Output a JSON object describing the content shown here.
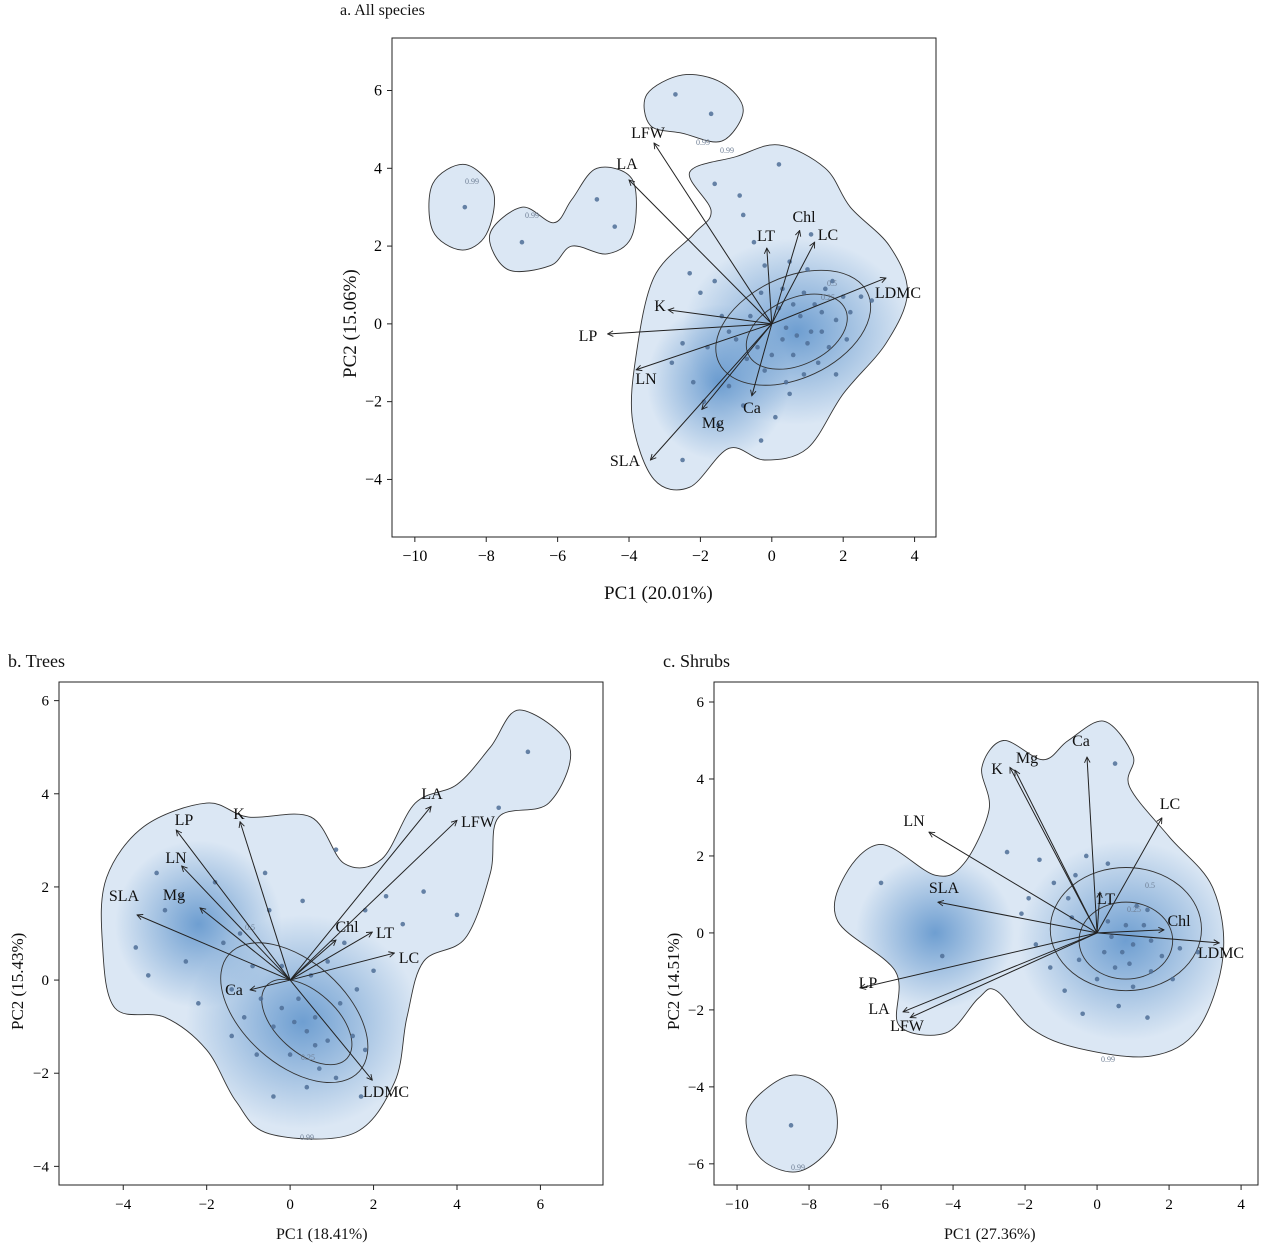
{
  "chart_data": [
    {
      "type": "scatter",
      "title": "a. All species",
      "xlabel": "PC1 (20.01%)",
      "ylabel": "PC2 (15.06%)",
      "xlim": [
        -10.64,
        4.6
      ],
      "ylim": [
        -5.48,
        7.35
      ],
      "xticks": [
        -10,
        -8,
        -6,
        -4,
        -2,
        0,
        2,
        4
      ],
      "yticks": [
        -4,
        -2,
        0,
        2,
        4,
        6
      ],
      "grid": false,
      "contour_levels": [
        "0.99",
        "0.5",
        "0.25"
      ],
      "colors": {
        "density": "#4a86c5",
        "points": "#4f6f96",
        "lines": "#222222"
      },
      "loadings": [
        {
          "name": "LFW",
          "x": -3.3,
          "y": 4.65
        },
        {
          "name": "LA",
          "x": -4.0,
          "y": 3.7
        },
        {
          "name": "LT",
          "x": -0.14,
          "y": 1.95
        },
        {
          "name": "Chl",
          "x": 0.78,
          "y": 2.4
        },
        {
          "name": "LC",
          "x": 1.2,
          "y": 2.1
        },
        {
          "name": "LDMC",
          "x": 3.2,
          "y": 1.18
        },
        {
          "name": "K",
          "x": -2.9,
          "y": 0.36
        },
        {
          "name": "LP",
          "x": -4.6,
          "y": -0.26
        },
        {
          "name": "LN",
          "x": -3.8,
          "y": -1.18
        },
        {
          "name": "Mg",
          "x": -1.96,
          "y": -2.2
        },
        {
          "name": "Ca",
          "x": -0.56,
          "y": -1.85
        },
        {
          "name": "SLA",
          "x": -3.4,
          "y": -3.5
        }
      ],
      "points": [
        [
          -8.6,
          3.0
        ],
        [
          -7.0,
          2.1
        ],
        [
          -4.9,
          3.2
        ],
        [
          -4.4,
          2.5
        ],
        [
          -2.7,
          5.9
        ],
        [
          -1.7,
          5.4
        ],
        [
          -1.6,
          3.6
        ],
        [
          -0.8,
          2.8
        ],
        [
          0.2,
          4.1
        ],
        [
          1.1,
          2.3
        ],
        [
          -2.3,
          1.3
        ],
        [
          -2.0,
          0.8
        ],
        [
          -1.6,
          1.1
        ],
        [
          -2.5,
          -0.5
        ],
        [
          -2.8,
          -1.0
        ],
        [
          -1.8,
          -0.6
        ],
        [
          -2.2,
          -1.5
        ],
        [
          -1.9,
          -2.0
        ],
        [
          -2.5,
          -3.5
        ],
        [
          -1.5,
          -2.6
        ],
        [
          -0.8,
          -2.1
        ],
        [
          -1.2,
          -1.6
        ],
        [
          -0.3,
          -3.0
        ],
        [
          0.5,
          -1.8
        ],
        [
          -1.0,
          -0.4
        ],
        [
          -0.6,
          0.2
        ],
        [
          -0.3,
          0.8
        ],
        [
          0.3,
          0.9
        ],
        [
          0.5,
          1.6
        ],
        [
          1.0,
          1.4
        ],
        [
          1.5,
          0.9
        ],
        [
          2.0,
          0.7
        ],
        [
          2.2,
          0.3
        ],
        [
          1.8,
          0.1
        ],
        [
          1.4,
          -0.2
        ],
        [
          1.0,
          -0.5
        ],
        [
          0.7,
          -0.3
        ],
        [
          0.4,
          -0.1
        ],
        [
          0.2,
          0.4
        ],
        [
          0.8,
          0.2
        ],
        [
          1.2,
          0.5
        ],
        [
          1.6,
          -0.6
        ],
        [
          1.3,
          -1.0
        ],
        [
          0.9,
          -1.3
        ],
        [
          0.4,
          -1.5
        ],
        [
          0.0,
          -0.8
        ],
        [
          -0.4,
          -0.6
        ],
        [
          -0.2,
          -1.2
        ],
        [
          0.6,
          -0.8
        ],
        [
          1.1,
          -0.2
        ],
        [
          0.3,
          -0.4
        ],
        [
          -0.7,
          -0.9
        ],
        [
          1.8,
          -1.3
        ],
        [
          2.5,
          0.7
        ],
        [
          2.8,
          0.6
        ],
        [
          -0.2,
          1.5
        ],
        [
          0.9,
          0.8
        ],
        [
          1.4,
          0.3
        ],
        [
          0.6,
          0.5
        ],
        [
          -1.4,
          0.2
        ],
        [
          -1.2,
          -0.2
        ],
        [
          0.1,
          -2.4
        ],
        [
          1.7,
          1.1
        ],
        [
          2.1,
          -0.4
        ],
        [
          -0.5,
          2.1
        ],
        [
          -0.9,
          3.3
        ]
      ]
    },
    {
      "type": "scatter",
      "title": "b. Trees",
      "xlabel": "PC1 (18.41%)",
      "ylabel": "PC2 (15.43%)",
      "xlim": [
        -5.54,
        7.5
      ],
      "ylim": [
        -4.4,
        6.4
      ],
      "xticks": [
        -4,
        -2,
        0,
        2,
        4,
        6
      ],
      "yticks": [
        -4,
        -2,
        0,
        2,
        4,
        6
      ],
      "grid": false,
      "contour_levels": [
        "0.99",
        "0.5",
        "0.25"
      ],
      "colors": {
        "density": "#4a86c5",
        "points": "#4f6f96",
        "lines": "#222222"
      },
      "loadings": [
        {
          "name": "LP",
          "x": -2.73,
          "y": 3.22
        },
        {
          "name": "K",
          "x": -1.2,
          "y": 3.4
        },
        {
          "name": "LN",
          "x": -2.6,
          "y": 2.45
        },
        {
          "name": "SLA",
          "x": -3.67,
          "y": 1.4
        },
        {
          "name": "Mg",
          "x": -2.16,
          "y": 1.55
        },
        {
          "name": "Ca",
          "x": -0.96,
          "y": -0.21
        },
        {
          "name": "Chl",
          "x": 1.1,
          "y": 0.86
        },
        {
          "name": "LT",
          "x": 1.97,
          "y": 1.03
        },
        {
          "name": "LC",
          "x": 2.5,
          "y": 0.58
        },
        {
          "name": "LA",
          "x": 3.38,
          "y": 3.73
        },
        {
          "name": "LFW",
          "x": 4.0,
          "y": 3.43
        },
        {
          "name": "LDMC",
          "x": 1.97,
          "y": -2.15
        }
      ],
      "points": [
        [
          5.7,
          4.9
        ],
        [
          5.0,
          3.7
        ],
        [
          4.0,
          1.4
        ],
        [
          3.2,
          1.9
        ],
        [
          2.7,
          1.2
        ],
        [
          1.8,
          1.5
        ],
        [
          1.1,
          2.8
        ],
        [
          0.3,
          1.7
        ],
        [
          -0.5,
          1.5
        ],
        [
          -1.2,
          1.0
        ],
        [
          -1.8,
          2.1
        ],
        [
          -3.0,
          1.5
        ],
        [
          -3.2,
          2.3
        ],
        [
          -3.7,
          0.7
        ],
        [
          -3.4,
          0.1
        ],
        [
          -2.5,
          0.4
        ],
        [
          -2.2,
          -0.5
        ],
        [
          -1.4,
          -0.2
        ],
        [
          -1.4,
          -1.2
        ],
        [
          -0.8,
          -1.6
        ],
        [
          -0.4,
          -2.5
        ],
        [
          -0.2,
          -0.6
        ],
        [
          0.1,
          -0.9
        ],
        [
          0.4,
          -1.1
        ],
        [
          0.6,
          -0.8
        ],
        [
          0.9,
          -1.3
        ],
        [
          1.2,
          -0.5
        ],
        [
          1.5,
          -1.2
        ],
        [
          1.8,
          -1.5
        ],
        [
          0.7,
          -1.9
        ],
        [
          0.4,
          -2.3
        ],
        [
          0.0,
          -1.6
        ],
        [
          -0.4,
          -1.0
        ],
        [
          -0.7,
          -0.4
        ],
        [
          -0.9,
          0.3
        ],
        [
          -0.2,
          0.3
        ],
        [
          0.5,
          0.1
        ],
        [
          0.9,
          0.4
        ],
        [
          1.3,
          0.8
        ],
        [
          2.0,
          0.2
        ],
        [
          0.2,
          -0.4
        ],
        [
          0.6,
          -1.4
        ],
        [
          1.1,
          -2.1
        ],
        [
          1.7,
          -2.5
        ],
        [
          -1.6,
          0.8
        ],
        [
          -2.6,
          1.8
        ],
        [
          -0.6,
          2.3
        ],
        [
          2.3,
          1.8
        ],
        [
          1.6,
          -0.2
        ],
        [
          -1.1,
          -0.8
        ]
      ]
    },
    {
      "type": "scatter",
      "title": "c. Shrubs",
      "xlabel": "PC1 (27.36%)",
      "ylabel": "PC2 (14.51%)",
      "xlim": [
        -10.64,
        4.47
      ],
      "ylim": [
        -6.55,
        6.52
      ],
      "xticks": [
        -10,
        -8,
        -6,
        -4,
        -2,
        0,
        2,
        4
      ],
      "yticks": [
        -6,
        -4,
        -2,
        0,
        2,
        4,
        6
      ],
      "grid": false,
      "contour_levels": [
        "0.99",
        "0.5",
        "0.25"
      ],
      "colors": {
        "density": "#4a86c5",
        "points": "#4f6f96",
        "lines": "#222222"
      },
      "loadings": [
        {
          "name": "Ca",
          "x": -0.28,
          "y": 4.57
        },
        {
          "name": "Mg",
          "x": -2.28,
          "y": 4.23
        },
        {
          "name": "K",
          "x": -2.42,
          "y": 4.3
        },
        {
          "name": "LC",
          "x": 1.8,
          "y": 2.99
        },
        {
          "name": "LN",
          "x": -4.67,
          "y": 2.62
        },
        {
          "name": "SLA",
          "x": -4.42,
          "y": 0.8
        },
        {
          "name": "LT",
          "x": 0.08,
          "y": 1.06
        },
        {
          "name": "Chl",
          "x": 1.86,
          "y": 0.08
        },
        {
          "name": "LDMC",
          "x": 3.39,
          "y": -0.26
        },
        {
          "name": "LP",
          "x": -6.58,
          "y": -1.43
        },
        {
          "name": "LA",
          "x": -5.39,
          "y": -2.05
        },
        {
          "name": "LFW",
          "x": -5.19,
          "y": -2.2
        }
      ],
      "points": [
        [
          -8.5,
          -5.0
        ],
        [
          -6.0,
          1.3
        ],
        [
          -4.3,
          -0.6
        ],
        [
          -2.5,
          2.1
        ],
        [
          -1.6,
          1.9
        ],
        [
          -1.2,
          1.3
        ],
        [
          -0.6,
          1.5
        ],
        [
          -0.8,
          0.9
        ],
        [
          -1.9,
          0.9
        ],
        [
          -2.1,
          0.5
        ],
        [
          -0.3,
          2.0
        ],
        [
          0.3,
          1.8
        ],
        [
          0.5,
          4.4
        ],
        [
          1.1,
          0.7
        ],
        [
          1.4,
          0.6
        ],
        [
          0.8,
          0.2
        ],
        [
          0.4,
          -0.1
        ],
        [
          0.2,
          -0.5
        ],
        [
          0.7,
          -0.5
        ],
        [
          1.0,
          -0.3
        ],
        [
          1.5,
          -0.2
        ],
        [
          1.8,
          -0.6
        ],
        [
          2.3,
          -0.4
        ],
        [
          2.1,
          -1.2
        ],
        [
          1.5,
          -1.0
        ],
        [
          1.0,
          -1.4
        ],
        [
          0.5,
          -0.9
        ],
        [
          0.0,
          -1.2
        ],
        [
          -0.5,
          -0.7
        ],
        [
          -0.9,
          -1.5
        ],
        [
          -1.3,
          -0.9
        ],
        [
          -0.7,
          0.4
        ],
        [
          0.3,
          0.3
        ],
        [
          1.3,
          0.2
        ],
        [
          0.9,
          -0.8
        ],
        [
          1.4,
          -2.2
        ],
        [
          -0.4,
          -2.1
        ],
        [
          2.8,
          -0.5
        ],
        [
          0.6,
          -1.9
        ],
        [
          -1.7,
          -0.3
        ]
      ]
    }
  ]
}
